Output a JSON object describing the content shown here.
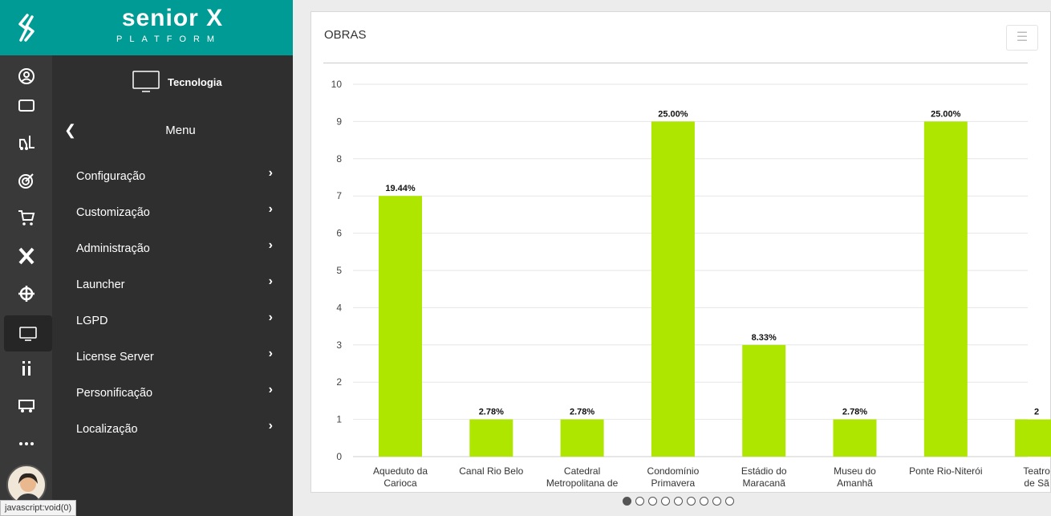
{
  "brand": {
    "name": "senior X",
    "subtitle": "PLATFORM"
  },
  "section": {
    "title": "Tecnologia"
  },
  "menu": {
    "back_label": "Menu",
    "items": [
      {
        "label": "Configuração"
      },
      {
        "label": "Customização"
      },
      {
        "label": "Administração"
      },
      {
        "label": "Launcher"
      },
      {
        "label": "LGPD"
      },
      {
        "label": "License Server"
      },
      {
        "label": "Personificação"
      },
      {
        "label": "Localização"
      }
    ]
  },
  "rail": {
    "icons": [
      "user-circle-icon",
      "briefcase-icon",
      "forklift-icon",
      "target-icon",
      "cart-icon",
      "x-brand-icon",
      "crosshair-icon",
      "monitor-icon",
      "info-icon",
      "truck-icon",
      "more-icon"
    ]
  },
  "status_text": "javascript:void(0)",
  "card": {
    "title": "OBRAS",
    "menu_icon": "hamburger-icon"
  },
  "carousel": {
    "count": 9,
    "active": 0
  },
  "colors": {
    "bar": "#aee600",
    "brand": "#009b94",
    "rail": "#393939",
    "menu": "#2f2f2f"
  },
  "chart_data": {
    "type": "bar",
    "title": "OBRAS",
    "categories": [
      [
        "Aqueduto da",
        "Carioca"
      ],
      [
        "Canal Rio Belo"
      ],
      [
        "Catedral",
        "Metropolitana de"
      ],
      [
        "Condomínio",
        "Primavera"
      ],
      [
        "Estádio do",
        "Maracanã"
      ],
      [
        "Museu do",
        "Amanhã"
      ],
      [
        "Ponte Rio-Niterói"
      ],
      [
        "Teatro",
        "de Sã"
      ]
    ],
    "values": [
      7,
      1,
      1,
      9,
      3,
      1,
      9,
      1
    ],
    "data_labels": [
      "19.44%",
      "2.78%",
      "2.78%",
      "25.00%",
      "8.33%",
      "2.78%",
      "25.00%",
      "2"
    ],
    "ylim": [
      0,
      10
    ],
    "yticks": [
      "0",
      "1",
      "2",
      "3",
      "4",
      "5",
      "6",
      "7",
      "8",
      "9",
      "10"
    ],
    "grid": true
  }
}
